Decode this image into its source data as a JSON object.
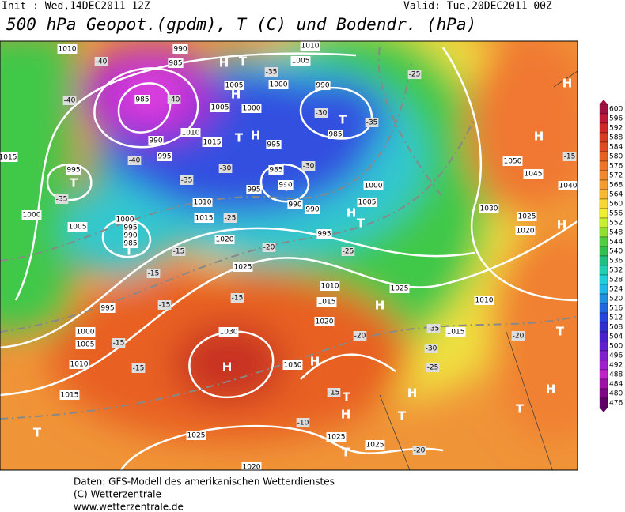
{
  "header": {
    "init": "Init : Wed,14DEC2011 12Z",
    "valid": "Valid: Tue,20DEC2011 00Z",
    "title": "500 hPa Geopot.(gpdm), T (C) und Bodendr. (hPa)"
  },
  "footer": [
    "Daten: GFS-Modell des amerikanischen Wetterdienstes",
    "(C) Wetterzentrale",
    "www.wetterzentrale.de"
  ],
  "legend": {
    "levels": [
      "600",
      "596",
      "592",
      "588",
      "584",
      "580",
      "576",
      "572",
      "568",
      "564",
      "560",
      "556",
      "552",
      "548",
      "544",
      "540",
      "536",
      "532",
      "528",
      "524",
      "520",
      "516",
      "512",
      "508",
      "504",
      "500",
      "496",
      "492",
      "488",
      "484",
      "480",
      "476"
    ],
    "colors": [
      "#a01040",
      "#c01838",
      "#d02828",
      "#d83c20",
      "#e04c20",
      "#e86020",
      "#f07428",
      "#f08830",
      "#f49c30",
      "#f8b830",
      "#f8d830",
      "#f0f030",
      "#c8f030",
      "#90e030",
      "#50d040",
      "#30c050",
      "#20c080",
      "#20d0b0",
      "#20d0d8",
      "#20b8e8",
      "#2090e0",
      "#2068e0",
      "#2844e0",
      "#3030d0",
      "#4820d0",
      "#6020d0",
      "#8020d0",
      "#a020d0",
      "#c020c8",
      "#a010a8",
      "#800888",
      "#600068"
    ]
  },
  "map_labels": {
    "pressure": [
      "1010",
      "990",
      "985",
      "1005",
      "1010",
      "1005",
      "1000",
      "990",
      "985",
      "1000",
      "1005",
      "1010",
      "1015",
      "990",
      "995",
      "995",
      "985",
      "990",
      "995",
      "990",
      "990",
      "1015",
      "995",
      "1000",
      "1005",
      "1000",
      "995",
      "990",
      "985",
      "1010",
      "1015",
      "1020",
      "1025",
      "995",
      "1000",
      "1005",
      "1010",
      "1015",
      "1030",
      "1030",
      "1025",
      "1020",
      "1025",
      "1025",
      "1010",
      "1015",
      "1020",
      "1025",
      "1010",
      "1015",
      "1030",
      "1025",
      "1020",
      "1050",
      "1045",
      "1040",
      "1000",
      "1005",
      "985",
      "995"
    ],
    "temperature": [
      "-40",
      "-40",
      "-40",
      "-40",
      "-35",
      "-35",
      "-30",
      "-25",
      "-20",
      "-15",
      "-15",
      "-15",
      "-15",
      "-15",
      "-15",
      "-20",
      "-25",
      "-30",
      "-35",
      "-10",
      "-15",
      "-20",
      "-25",
      "-35",
      "-30",
      "-35",
      "-30",
      "-25",
      "-20",
      "-15"
    ],
    "centers": [
      "H",
      "T",
      "H",
      "H",
      "T",
      "T",
      "T",
      "H",
      "T",
      "H",
      "H",
      "H",
      "T",
      "H",
      "T",
      "H",
      "H",
      "T",
      "H",
      "T",
      "H",
      "T",
      "T",
      "H",
      "T",
      "T"
    ]
  }
}
